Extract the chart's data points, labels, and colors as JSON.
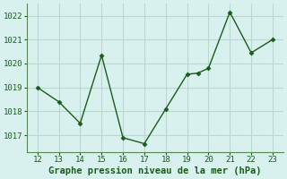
{
  "x": [
    12,
    13,
    14,
    15,
    16,
    17,
    18,
    19,
    19.5,
    20,
    21,
    22,
    23
  ],
  "y": [
    1019.0,
    1018.4,
    1017.5,
    1020.35,
    1016.9,
    1016.65,
    1018.1,
    1019.55,
    1019.6,
    1019.8,
    1022.15,
    1020.45,
    1021.0
  ],
  "xlim": [
    11.5,
    23.5
  ],
  "ylim": [
    1016.3,
    1022.5
  ],
  "xticks": [
    12,
    13,
    14,
    15,
    16,
    17,
    18,
    19,
    20,
    21,
    22,
    23
  ],
  "yticks": [
    1017,
    1018,
    1019,
    1020,
    1021,
    1022
  ],
  "xlabel": "Graphe pression niveau de la mer (hPa)",
  "line_color": "#1a5c1a",
  "marker_color": "#1a5c1a",
  "bg_color": "#d8f0ee",
  "grid_color": "#b8d8d0",
  "tick_label_color": "#1a5c1a",
  "xlabel_color": "#1a5c1a",
  "tick_fontsize": 6.5,
  "xlabel_fontsize": 7.5
}
